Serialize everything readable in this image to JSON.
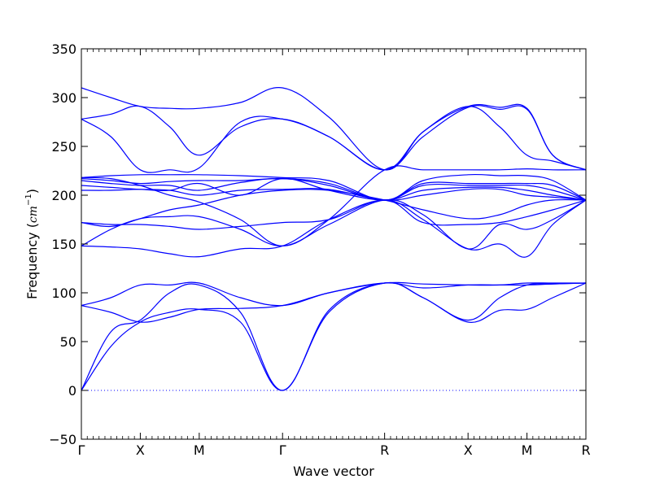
{
  "chart_data": {
    "type": "line",
    "title": "",
    "xlabel": "Wave vector",
    "ylabel_prefix": "Frequency (",
    "ylabel_unit": "cm",
    "ylabel_exp": "−1",
    "ylabel_suffix": ")",
    "ylim": [
      -50,
      350
    ],
    "yticks": [
      -50,
      0,
      50,
      100,
      150,
      200,
      250,
      300,
      350
    ],
    "ytick_labels": [
      "−50",
      "0",
      "50",
      "100",
      "150",
      "200",
      "250",
      "300",
      "350"
    ],
    "xticks": [
      0,
      0.5,
      1.0,
      1.707,
      2.573,
      3.281,
      3.781,
      4.281
    ],
    "xtick_labels": [
      "Γ",
      "X",
      "M",
      "Γ",
      "R",
      "X",
      "M",
      "R"
    ],
    "xlim": [
      0,
      4.281
    ],
    "zero_line": {
      "y": 0,
      "style": "dotted"
    },
    "line_color": "#0000ff",
    "series": [
      {
        "values": [
          [
            0,
            0
          ],
          [
            0.25,
            45
          ],
          [
            0.5,
            70
          ],
          [
            0.75,
            80
          ],
          [
            1.0,
            83
          ],
          [
            1.35,
            70
          ],
          [
            1.707,
            0
          ],
          [
            2.1,
            80
          ],
          [
            2.573,
            110
          ],
          [
            2.9,
            95
          ],
          [
            3.281,
            70
          ],
          [
            3.55,
            82
          ],
          [
            3.781,
            83
          ],
          [
            4.0,
            95
          ],
          [
            4.281,
            110
          ]
        ]
      },
      {
        "values": [
          [
            0,
            0
          ],
          [
            0.25,
            60
          ],
          [
            0.5,
            72
          ],
          [
            0.75,
            100
          ],
          [
            1.0,
            108
          ],
          [
            1.35,
            80
          ],
          [
            1.707,
            0
          ],
          [
            2.1,
            82
          ],
          [
            2.573,
            110
          ],
          [
            2.9,
            95
          ],
          [
            3.281,
            72
          ],
          [
            3.55,
            95
          ],
          [
            3.781,
            108
          ],
          [
            4.0,
            109
          ],
          [
            4.281,
            110
          ]
        ]
      },
      {
        "values": [
          [
            0,
            87
          ],
          [
            0.25,
            95
          ],
          [
            0.5,
            108
          ],
          [
            0.75,
            108
          ],
          [
            1.0,
            110
          ],
          [
            1.35,
            95
          ],
          [
            1.707,
            87
          ],
          [
            2.1,
            100
          ],
          [
            2.573,
            110
          ],
          [
            2.9,
            109
          ],
          [
            3.281,
            108
          ],
          [
            3.55,
            108
          ],
          [
            3.781,
            110
          ],
          [
            4.0,
            110
          ],
          [
            4.281,
            110
          ]
        ]
      },
      {
        "values": [
          [
            0,
            87
          ],
          [
            0.25,
            80
          ],
          [
            0.5,
            70
          ],
          [
            0.75,
            75
          ],
          [
            1.0,
            83
          ],
          [
            1.35,
            84
          ],
          [
            1.707,
            87
          ],
          [
            2.1,
            100
          ],
          [
            2.573,
            110
          ],
          [
            2.9,
            105
          ],
          [
            3.281,
            108
          ],
          [
            3.55,
            108
          ],
          [
            3.781,
            108
          ],
          [
            4.0,
            109
          ],
          [
            4.281,
            110
          ]
        ]
      },
      {
        "values": [
          [
            0,
            148
          ],
          [
            0.25,
            147
          ],
          [
            0.5,
            145
          ],
          [
            0.75,
            140
          ],
          [
            1.0,
            137
          ],
          [
            1.35,
            145
          ],
          [
            1.707,
            148
          ],
          [
            2.1,
            175
          ],
          [
            2.573,
            195
          ],
          [
            2.9,
            175
          ],
          [
            3.281,
            145
          ],
          [
            3.55,
            150
          ],
          [
            3.781,
            137
          ],
          [
            4.0,
            170
          ],
          [
            4.281,
            195
          ]
        ]
      },
      {
        "values": [
          [
            0,
            148
          ],
          [
            0.25,
            165
          ],
          [
            0.5,
            176
          ],
          [
            0.75,
            178
          ],
          [
            1.0,
            178
          ],
          [
            1.35,
            165
          ],
          [
            1.707,
            148
          ],
          [
            2.1,
            170
          ],
          [
            2.573,
            195
          ],
          [
            2.9,
            180
          ],
          [
            3.281,
            145
          ],
          [
            3.55,
            170
          ],
          [
            3.781,
            165
          ],
          [
            4.0,
            175
          ],
          [
            4.281,
            195
          ]
        ]
      },
      {
        "values": [
          [
            0,
            172
          ],
          [
            0.25,
            170
          ],
          [
            0.5,
            170
          ],
          [
            0.75,
            168
          ],
          [
            1.0,
            165
          ],
          [
            1.35,
            168
          ],
          [
            1.707,
            172
          ],
          [
            2.1,
            175
          ],
          [
            2.573,
            195
          ],
          [
            2.9,
            172
          ],
          [
            3.281,
            170
          ],
          [
            3.55,
            172
          ],
          [
            3.781,
            178
          ],
          [
            4.0,
            185
          ],
          [
            4.281,
            195
          ]
        ]
      },
      {
        "values": [
          [
            0,
            172
          ],
          [
            0.25,
            168
          ],
          [
            0.5,
            176
          ],
          [
            0.75,
            185
          ],
          [
            1.0,
            190
          ],
          [
            1.35,
            200
          ],
          [
            1.707,
            205
          ],
          [
            2.1,
            205
          ],
          [
            2.573,
            195
          ],
          [
            2.9,
            185
          ],
          [
            3.281,
            176
          ],
          [
            3.55,
            180
          ],
          [
            3.781,
            190
          ],
          [
            4.0,
            195
          ],
          [
            4.281,
            195
          ]
        ]
      },
      {
        "values": [
          [
            0,
            205
          ],
          [
            0.25,
            205
          ],
          [
            0.5,
            206
          ],
          [
            0.75,
            205
          ],
          [
            1.0,
            200
          ],
          [
            1.35,
            205
          ],
          [
            1.707,
            206
          ],
          [
            2.1,
            206
          ],
          [
            2.573,
            195
          ],
          [
            2.9,
            200
          ],
          [
            3.281,
            206
          ],
          [
            3.55,
            206
          ],
          [
            3.781,
            200
          ],
          [
            4.0,
            198
          ],
          [
            4.281,
            195
          ]
        ]
      },
      {
        "values": [
          [
            0,
            210
          ],
          [
            0.25,
            208
          ],
          [
            0.5,
            206
          ],
          [
            0.75,
            205
          ],
          [
            1.0,
            212
          ],
          [
            1.35,
            200
          ],
          [
            1.707,
            217
          ],
          [
            2.1,
            205
          ],
          [
            2.573,
            195
          ],
          [
            2.9,
            205
          ],
          [
            3.281,
            208
          ],
          [
            3.55,
            208
          ],
          [
            3.781,
            205
          ],
          [
            4.0,
            200
          ],
          [
            4.281,
            195
          ]
        ]
      },
      {
        "values": [
          [
            0,
            215
          ],
          [
            0.25,
            212
          ],
          [
            0.5,
            210
          ],
          [
            0.75,
            210
          ],
          [
            1.0,
            205
          ],
          [
            1.35,
            213
          ],
          [
            1.707,
            217
          ],
          [
            2.1,
            210
          ],
          [
            2.573,
            195
          ],
          [
            2.9,
            210
          ],
          [
            3.281,
            210
          ],
          [
            3.55,
            210
          ],
          [
            3.781,
            210
          ],
          [
            4.0,
            205
          ],
          [
            4.281,
            195
          ]
        ]
      },
      {
        "values": [
          [
            0,
            217
          ],
          [
            0.25,
            215
          ],
          [
            0.5,
            212
          ],
          [
            0.75,
            214
          ],
          [
            1.0,
            215
          ],
          [
            1.35,
            215
          ],
          [
            1.707,
            217
          ],
          [
            2.1,
            212
          ],
          [
            2.573,
            195
          ],
          [
            2.9,
            212
          ],
          [
            3.281,
            212
          ],
          [
            3.55,
            212
          ],
          [
            3.781,
            212
          ],
          [
            4.0,
            210
          ],
          [
            4.281,
            195
          ]
        ]
      },
      {
        "values": [
          [
            0,
            218
          ],
          [
            0.25,
            220
          ],
          [
            0.5,
            221
          ],
          [
            0.75,
            221
          ],
          [
            1.0,
            221
          ],
          [
            1.35,
            220
          ],
          [
            1.707,
            218
          ],
          [
            2.1,
            215
          ],
          [
            2.573,
            195
          ],
          [
            2.9,
            215
          ],
          [
            3.281,
            221
          ],
          [
            3.55,
            220
          ],
          [
            3.781,
            220
          ],
          [
            4.0,
            215
          ],
          [
            4.281,
            195
          ]
        ]
      },
      {
        "values": [
          [
            0,
            218
          ],
          [
            0.25,
            217
          ],
          [
            0.5,
            210
          ],
          [
            0.75,
            200
          ],
          [
            1.0,
            193
          ],
          [
            1.35,
            175
          ],
          [
            1.707,
            148
          ],
          [
            2.1,
            175
          ],
          [
            2.573,
            226
          ],
          [
            2.9,
            226
          ],
          [
            3.281,
            226
          ],
          [
            3.55,
            226
          ],
          [
            3.781,
            227
          ],
          [
            4.0,
            226
          ],
          [
            4.281,
            226
          ]
        ]
      },
      {
        "values": [
          [
            0,
            278
          ],
          [
            0.25,
            260
          ],
          [
            0.5,
            226
          ],
          [
            0.75,
            226
          ],
          [
            1.0,
            228
          ],
          [
            1.35,
            275
          ],
          [
            1.707,
            278
          ],
          [
            2.1,
            260
          ],
          [
            2.573,
            226
          ],
          [
            2.9,
            260
          ],
          [
            3.281,
            290
          ],
          [
            3.55,
            288
          ],
          [
            3.781,
            288
          ],
          [
            4.0,
            241
          ],
          [
            4.281,
            226
          ]
        ]
      },
      {
        "values": [
          [
            0,
            278
          ],
          [
            0.25,
            283
          ],
          [
            0.5,
            291
          ],
          [
            0.75,
            270
          ],
          [
            1.0,
            241
          ],
          [
            1.35,
            270
          ],
          [
            1.707,
            278
          ],
          [
            2.1,
            260
          ],
          [
            2.573,
            226
          ],
          [
            2.9,
            265
          ],
          [
            3.281,
            291
          ],
          [
            3.55,
            270
          ],
          [
            3.781,
            241
          ],
          [
            4.0,
            235
          ],
          [
            4.281,
            226
          ]
        ]
      },
      {
        "values": [
          [
            0,
            310
          ],
          [
            0.25,
            300
          ],
          [
            0.5,
            291
          ],
          [
            0.75,
            289
          ],
          [
            1.0,
            289
          ],
          [
            1.35,
            295
          ],
          [
            1.707,
            310
          ],
          [
            2.1,
            280
          ],
          [
            2.573,
            226
          ],
          [
            2.9,
            265
          ],
          [
            3.281,
            291
          ],
          [
            3.55,
            290
          ],
          [
            3.781,
            289
          ],
          [
            4.0,
            241
          ],
          [
            4.281,
            226
          ]
        ]
      }
    ]
  }
}
